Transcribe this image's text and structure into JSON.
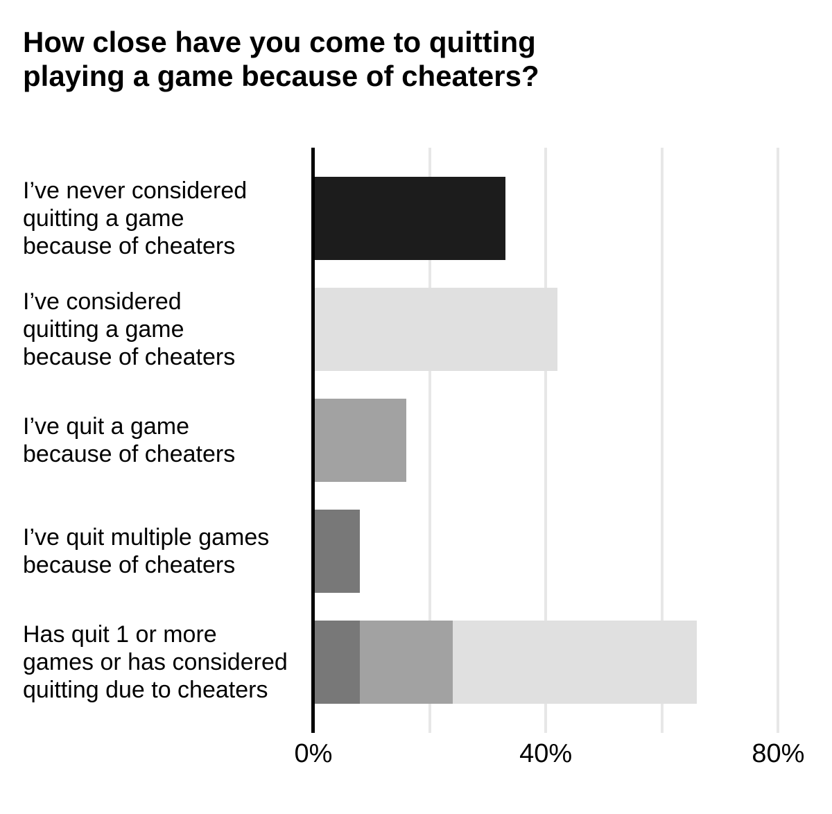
{
  "chart_data": {
    "type": "bar",
    "orientation": "horizontal",
    "unit": "%",
    "title": "How close have you come to quitting\nplaying a game because of cheaters?",
    "categories": [
      "I’ve never considered\nquitting a game\nbecause of cheaters",
      "I’ve considered\nquitting a game\nbecause of cheaters",
      "I’ve quit a game\nbecause of cheaters",
      "I’ve quit multiple games\nbecause of cheaters",
      "Has quit 1 or more\ngames or has considered\nquitting due to cheaters"
    ],
    "bars": [
      {
        "name": "never-considered",
        "total": 33,
        "segments": [
          {
            "value": 33,
            "color": "#1c1c1c",
            "label": "never considered quitting"
          }
        ]
      },
      {
        "name": "considered-quitting",
        "total": 42,
        "segments": [
          {
            "value": 42,
            "color": "#e0e0e0",
            "label": "considered quitting"
          }
        ]
      },
      {
        "name": "quit-a-game",
        "total": 16,
        "segments": [
          {
            "value": 16,
            "color": "#a2a2a2",
            "label": "quit a game"
          }
        ]
      },
      {
        "name": "quit-multiple-games",
        "total": 8,
        "segments": [
          {
            "value": 8,
            "color": "#787878",
            "label": "quit multiple games"
          }
        ]
      },
      {
        "name": "quit-or-considered-combined",
        "total": 66,
        "segments": [
          {
            "value": 8,
            "color": "#787878",
            "label": "quit multiple games"
          },
          {
            "value": 16,
            "color": "#a2a2a2",
            "label": "quit a game"
          },
          {
            "value": 42,
            "color": "#e0e0e0",
            "label": "considered quitting"
          }
        ]
      }
    ],
    "xlim": [
      0,
      89
    ],
    "xticks": [
      {
        "value": 0,
        "label": "0%"
      },
      {
        "value": 40,
        "label": "40%"
      },
      {
        "value": 80,
        "label": "80%"
      }
    ],
    "gridlines_pct": [
      20,
      40,
      60,
      80
    ],
    "grid": true,
    "legend_position": "none",
    "colors": {
      "axis": "#000000",
      "gridline": "#e7e7e7",
      "background": "#ffffff",
      "text": "#000000"
    }
  }
}
